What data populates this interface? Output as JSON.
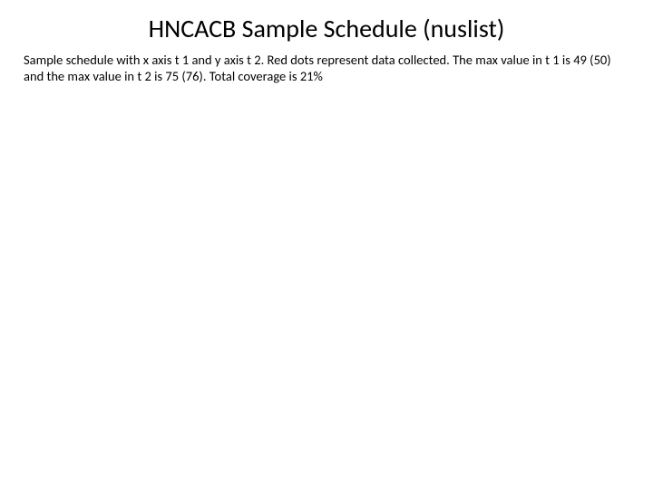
{
  "page": {
    "title": "HNCACB Sample Schedule (nuslist)",
    "description": "Sample schedule with x axis t 1 and y axis t 2. Red dots represent data collected. The max value in t 1 is 49 (50) and the max value in t 2 is 75 (76). Total coverage is 21%"
  },
  "styling": {
    "background_color": "#ffffff",
    "text_color": "#000000",
    "title_fontsize": 28,
    "description_fontsize": 14.5,
    "font_family": "Calibri, Arial, sans-serif"
  }
}
